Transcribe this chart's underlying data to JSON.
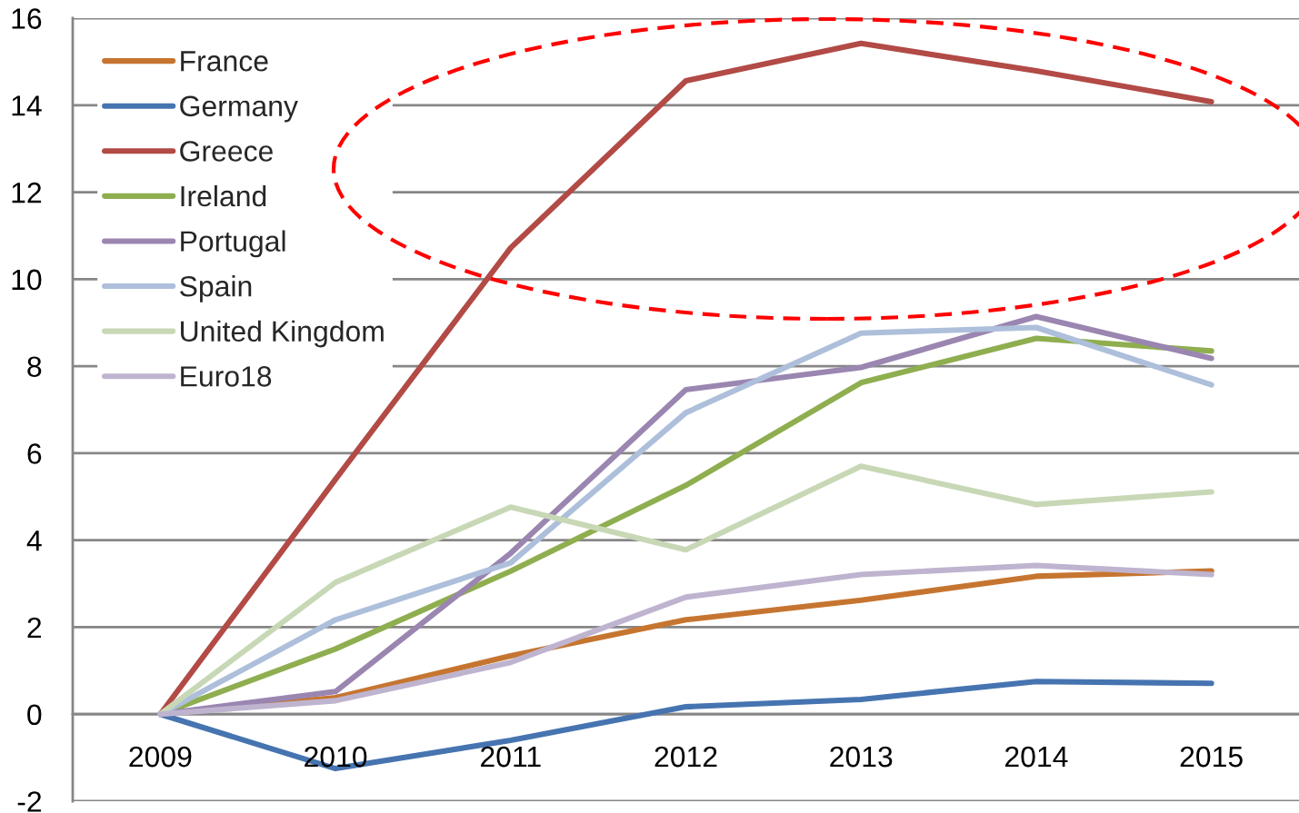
{
  "chart_data": {
    "type": "line",
    "categories": [
      "2009",
      "2010",
      "2011",
      "2012",
      "2013",
      "2014",
      "2015"
    ],
    "series": [
      {
        "name": "France",
        "color": "#c67530",
        "values": [
          0,
          0.38,
          1.34,
          2.17,
          2.62,
          3.17,
          3.29
        ]
      },
      {
        "name": "Germany",
        "color": "#4674b0",
        "values": [
          0,
          -1.25,
          -0.6,
          0.17,
          0.34,
          0.75,
          0.71
        ]
      },
      {
        "name": "Greece",
        "color": "#b24a46",
        "values": [
          0,
          5.4,
          10.72,
          14.56,
          15.42,
          14.79,
          14.08
        ]
      },
      {
        "name": "Ireland",
        "color": "#8fae4f",
        "values": [
          0,
          1.5,
          3.29,
          5.26,
          7.62,
          8.64,
          8.35
        ]
      },
      {
        "name": "Portugal",
        "color": "#9a86b0",
        "values": [
          0,
          0.52,
          3.7,
          7.46,
          7.97,
          9.14,
          8.18
        ]
      },
      {
        "name": "Spain",
        "color": "#adbfda",
        "values": [
          0,
          2.17,
          3.48,
          6.93,
          8.76,
          8.89,
          7.57
        ]
      },
      {
        "name": "United Kingdom",
        "color": "#c8d8b6",
        "values": [
          0,
          3.03,
          4.76,
          3.78,
          5.7,
          4.82,
          5.11
        ]
      },
      {
        "name": "Euro18",
        "color": "#bfb4cf",
        "values": [
          0,
          0.31,
          1.19,
          2.69,
          3.21,
          3.42,
          3.21
        ]
      }
    ],
    "ylim": [
      -2,
      16
    ],
    "yticks": [
      -2,
      0,
      2,
      4,
      6,
      8,
      10,
      12,
      14,
      16
    ],
    "grid": "y",
    "legend": "top left"
  }
}
